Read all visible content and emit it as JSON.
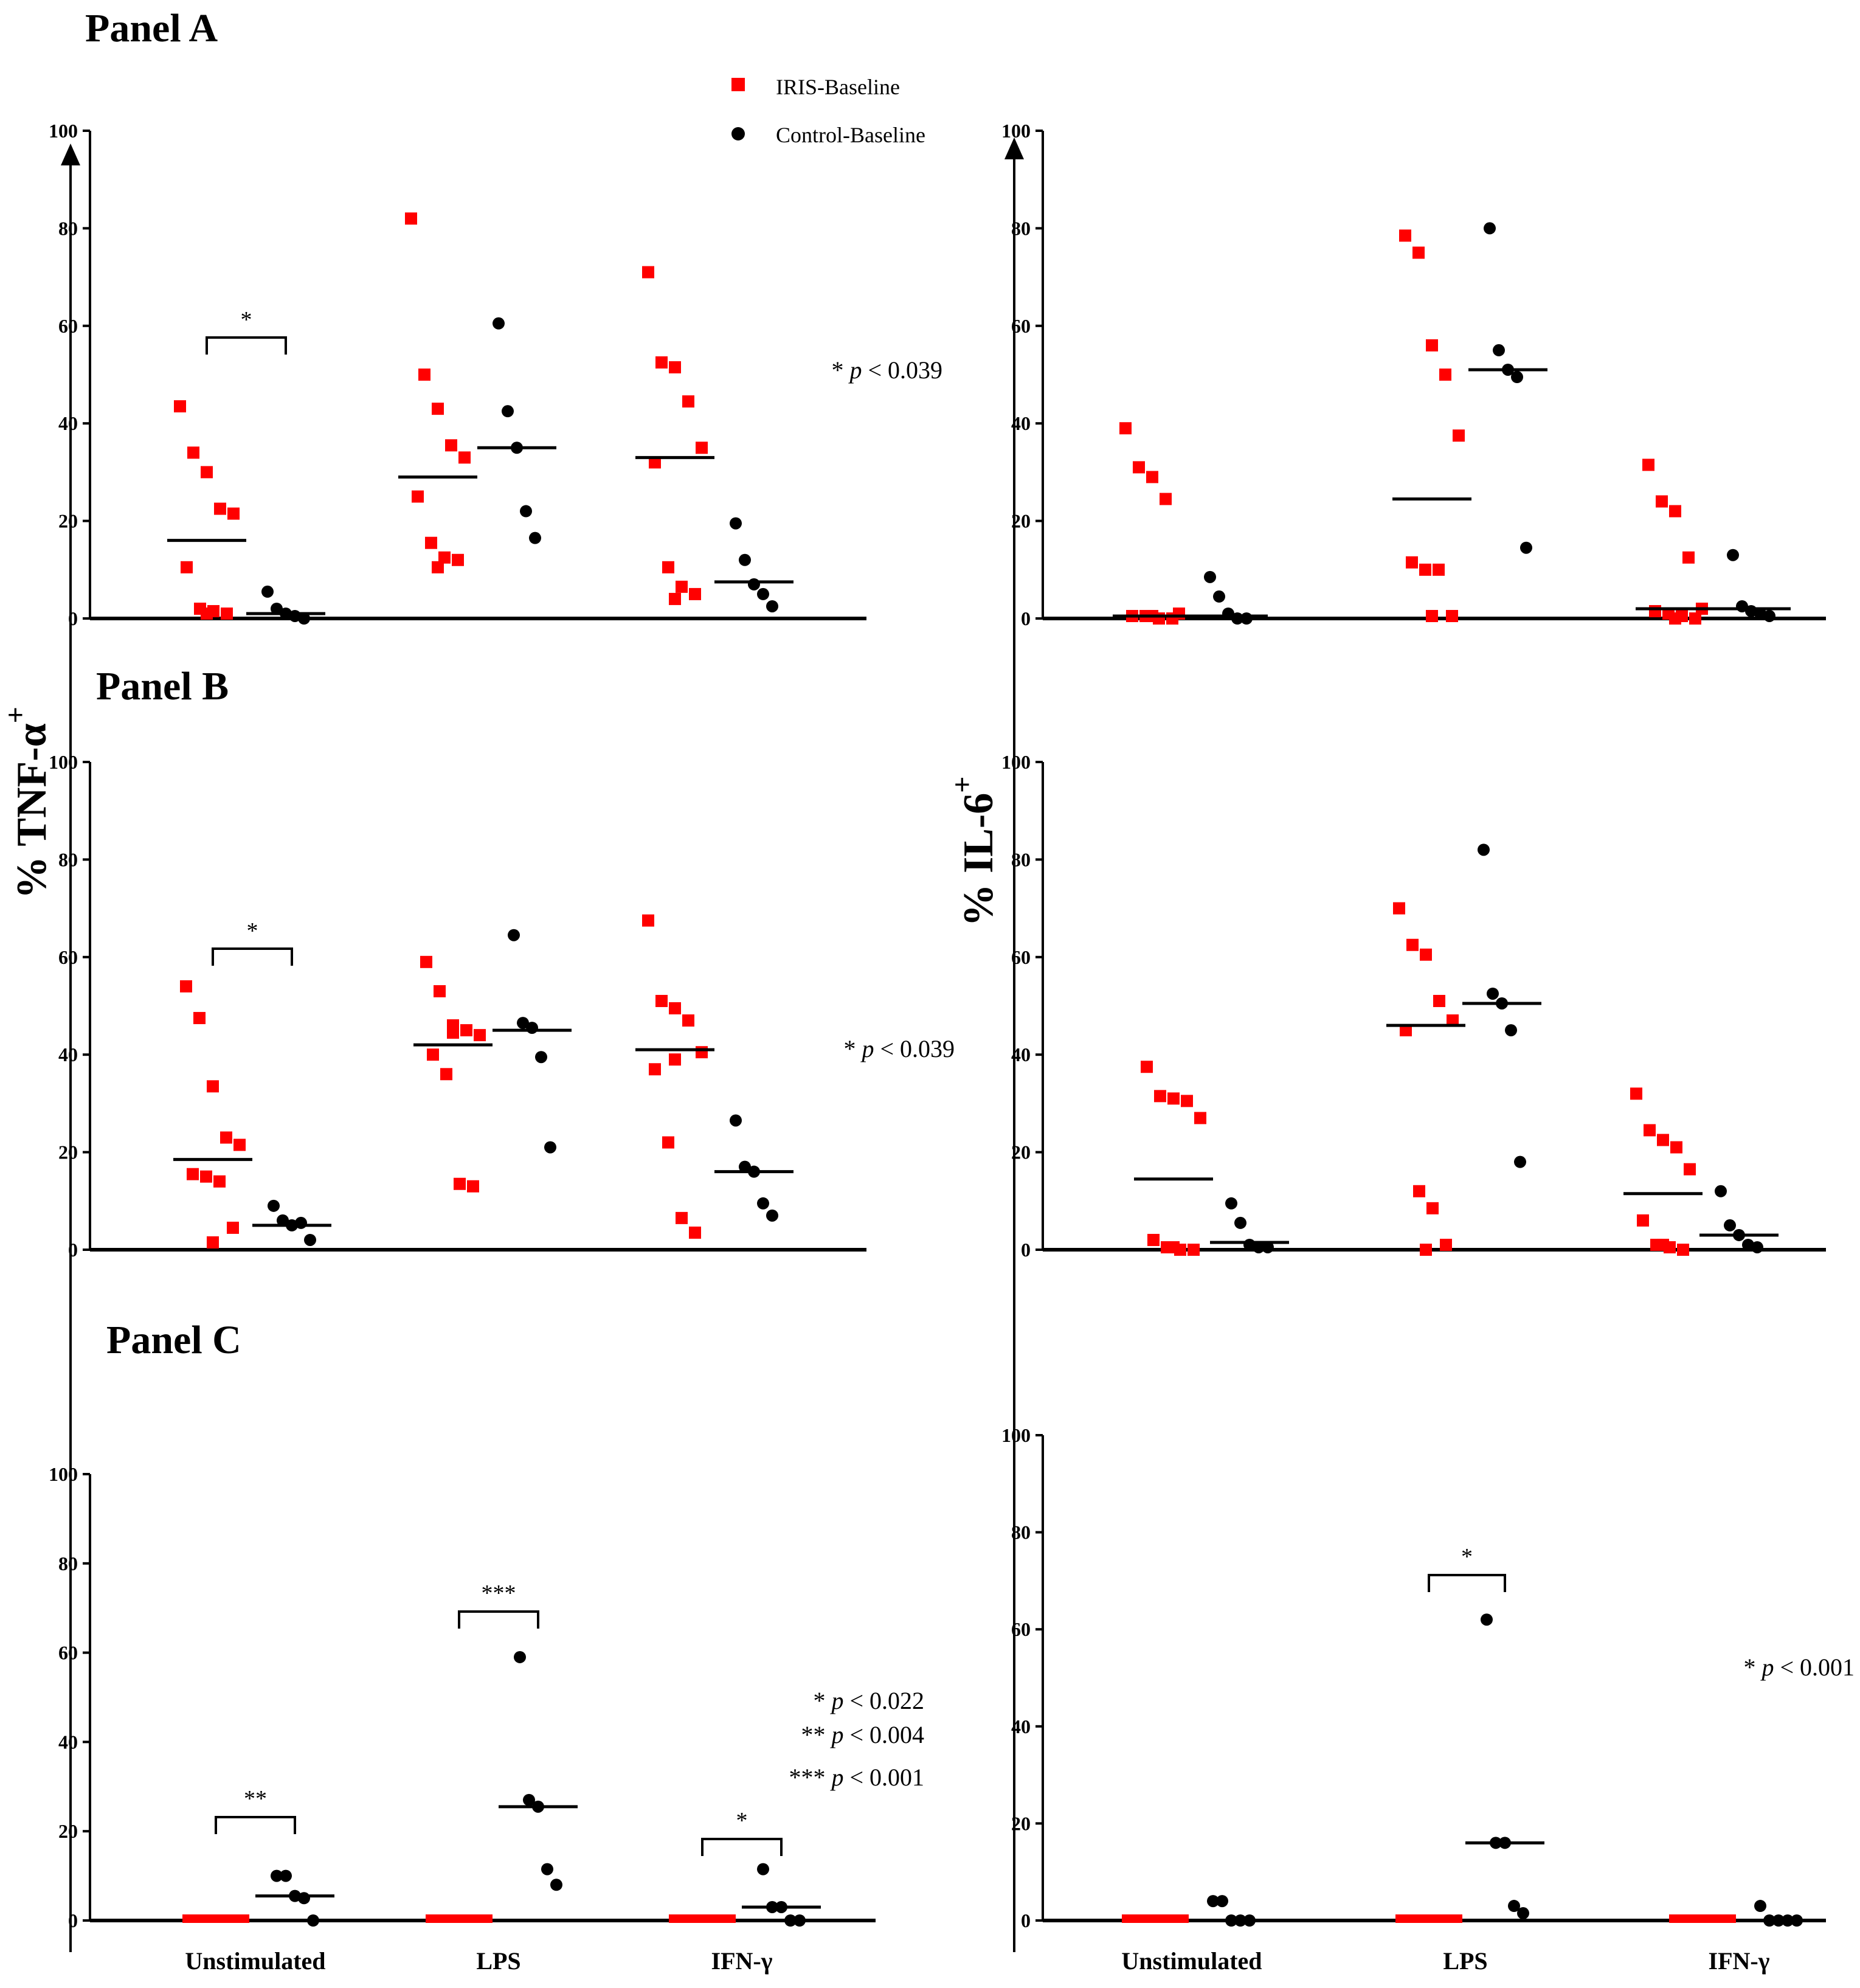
{
  "labels": {
    "panel_a": "Panel A",
    "panel_b": "Panel B",
    "panel_c": "Panel C",
    "y_tnf": "% TNF-α",
    "y_il6": "% IL-6",
    "y_sup": "+"
  },
  "colors": {
    "iris": "#ff0000",
    "control": "#000000",
    "axis": "#000000"
  },
  "legend": [
    {
      "name": "IRIS-Baseline",
      "marker": "square",
      "color": "#ff0000"
    },
    {
      "name": "Control-Baseline",
      "marker": "circle",
      "color": "#000000"
    }
  ],
  "chart_data": [
    {
      "type": "scatter",
      "id": "A-TNF",
      "panel": "Panel A",
      "ylabel": "% TNF-α+",
      "ylim": [
        0,
        100
      ],
      "yticks": [
        0,
        20,
        40,
        60,
        80,
        100
      ],
      "categories": [
        "Unstimulated",
        "LPS",
        "IFN-γ"
      ],
      "show_category_labels": false,
      "series": [
        {
          "name": "IRIS-Baseline",
          "groups": [
            [
              43.5,
              34,
              30,
              22.5,
              21.5,
              10.5,
              2,
              1.5,
              1,
              1
            ],
            [
              82,
              50,
              43,
              35.5,
              33,
              25,
              15.5,
              12.5,
              12,
              10.5
            ],
            [
              71,
              52.5,
              51.5,
              44.5,
              35,
              32,
              10.5,
              6.5,
              5,
              4
            ]
          ],
          "medians": [
            16,
            29,
            33
          ]
        },
        {
          "name": "Control-Baseline",
          "groups": [
            [
              5.5,
              2,
              1,
              0.5,
              0
            ],
            [
              60.5,
              42.5,
              35,
              22,
              16.5
            ],
            [
              19.5,
              12,
              7,
              5,
              2.5
            ]
          ],
          "medians": [
            1,
            35,
            7.5
          ]
        }
      ],
      "brackets": [
        {
          "group": 0,
          "stars": "*"
        }
      ],
      "annotations": [
        {
          "stars": "*",
          "text": "p < 0.039"
        }
      ]
    },
    {
      "type": "scatter",
      "id": "A-IL6",
      "panel": "Panel A",
      "ylabel": "% IL-6+",
      "ylim": [
        0,
        100
      ],
      "yticks": [
        0,
        20,
        40,
        60,
        80,
        100
      ],
      "categories": [
        "Unstimulated",
        "LPS",
        "IFN-γ"
      ],
      "show_category_labels": false,
      "series": [
        {
          "name": "IRIS-Baseline",
          "groups": [
            [
              39,
              31,
              29,
              24.5,
              1,
              0.5,
              0.5,
              0,
              0,
              0.5
            ],
            [
              78.5,
              75,
              56,
              50,
              37.5,
              11.5,
              10,
              10,
              0.5,
              0.5
            ],
            [
              31.5,
              24,
              22,
              12.5,
              2,
              1.5,
              1,
              0.5,
              0,
              0
            ]
          ],
          "medians": [
            0.5,
            24.5,
            2
          ]
        },
        {
          "name": "Control-Baseline",
          "groups": [
            [
              8.5,
              4.5,
              1,
              0,
              0
            ],
            [
              80,
              55,
              51,
              49.5,
              14.5
            ],
            [
              13,
              2.5,
              1.5,
              1,
              0.5
            ]
          ],
          "medians": [
            0.5,
            51,
            2
          ]
        }
      ],
      "brackets": [],
      "annotations": []
    },
    {
      "type": "scatter",
      "id": "B-TNF",
      "panel": "Panel B",
      "ylabel": "% TNF-α+",
      "ylim": [
        0,
        100
      ],
      "yticks": [
        0,
        20,
        40,
        60,
        80,
        100
      ],
      "categories": [
        "Unstimulated",
        "LPS",
        "IFN-γ"
      ],
      "show_category_labels": false,
      "series": [
        {
          "name": "IRIS-Baseline",
          "groups": [
            [
              54,
              47.5,
              33.5,
              23,
              21.5,
              15.5,
              15,
              14,
              4.5,
              1.5
            ],
            [
              59,
              53,
              46,
              45,
              44,
              40,
              36,
              13.5,
              13,
              44.5
            ],
            [
              67.5,
              51,
              49.5,
              47,
              40.5,
              37,
              22,
              6.5,
              3.5,
              39
            ]
          ],
          "medians": [
            18.5,
            42,
            41
          ]
        },
        {
          "name": "Control-Baseline",
          "groups": [
            [
              9,
              6,
              5,
              5.5,
              2
            ],
            [
              64.5,
              46.5,
              45.5,
              39.5,
              21
            ],
            [
              26.5,
              17,
              16,
              9.5,
              7
            ]
          ],
          "medians": [
            5,
            45,
            16
          ]
        }
      ],
      "brackets": [
        {
          "group": 0,
          "stars": "*"
        }
      ],
      "annotations": [
        {
          "stars": "*",
          "text": "p < 0.039"
        }
      ]
    },
    {
      "type": "scatter",
      "id": "B-IL6",
      "panel": "Panel B",
      "ylabel": "% IL-6+",
      "ylim": [
        0,
        100
      ],
      "yticks": [
        0,
        20,
        40,
        60,
        80,
        100
      ],
      "categories": [
        "Unstimulated",
        "LPS",
        "IFN-γ"
      ],
      "show_category_labels": false,
      "series": [
        {
          "name": "IRIS-Baseline",
          "groups": [
            [
              37.5,
              31.5,
              31,
              30.5,
              27,
              2,
              0.5,
              0,
              0,
              0.5
            ],
            [
              70,
              62.5,
              60.5,
              51,
              47,
              45,
              12,
              8.5,
              1,
              0
            ],
            [
              32,
              24.5,
              22.5,
              21,
              16.5,
              6,
              1,
              0.5,
              0,
              1
            ]
          ],
          "medians": [
            14.5,
            46,
            11.5
          ]
        },
        {
          "name": "Control-Baseline",
          "groups": [
            [
              9.5,
              5.5,
              1,
              0.5,
              0.5
            ],
            [
              82,
              52.5,
              50.5,
              45,
              18
            ],
            [
              12,
              5,
              3,
              1,
              0.5
            ]
          ],
          "medians": [
            1.5,
            50.5,
            3
          ]
        }
      ],
      "brackets": [],
      "annotations": []
    },
    {
      "type": "scatter",
      "id": "C-TNF",
      "panel": "Panel C",
      "ylabel": "% TNF-α+",
      "ylim": [
        0,
        100
      ],
      "yticks": [
        0,
        20,
        40,
        60,
        80,
        100
      ],
      "categories": [
        "Unstimulated",
        "LPS",
        "IFN-γ"
      ],
      "show_category_labels": true,
      "series": [
        {
          "name": "IRIS-Baseline",
          "groups": [
            [],
            [],
            []
          ],
          "medians": [
            0,
            0,
            0
          ],
          "baseline_bar": true
        },
        {
          "name": "Control-Baseline",
          "groups": [
            [
              10,
              10,
              5.5,
              5,
              0
            ],
            [
              59,
              27,
              25.5,
              11.5,
              8
            ],
            [
              11.5,
              3,
              3,
              0,
              0
            ]
          ],
          "medians": [
            5.5,
            25.5,
            3
          ]
        }
      ],
      "brackets": [
        {
          "group": 0,
          "stars": "**"
        },
        {
          "group": 1,
          "stars": "***"
        },
        {
          "group": 2,
          "stars": "*"
        }
      ],
      "annotations": [
        {
          "stars": "*",
          "text": "p < 0.022"
        },
        {
          "stars": "**",
          "text": "p < 0.004"
        },
        {
          "stars": "***",
          "text": "p < 0.001"
        }
      ]
    },
    {
      "type": "scatter",
      "id": "C-IL6",
      "panel": "Panel C",
      "ylabel": "% IL-6+",
      "ylim": [
        0,
        100
      ],
      "yticks": [
        0,
        20,
        40,
        60,
        80,
        100
      ],
      "categories": [
        "Unstimulated",
        "LPS",
        "IFN-γ"
      ],
      "show_category_labels": true,
      "series": [
        {
          "name": "IRIS-Baseline",
          "groups": [
            [],
            [],
            []
          ],
          "medians": [
            0,
            0,
            0
          ],
          "baseline_bar": true
        },
        {
          "name": "Control-Baseline",
          "groups": [
            [
              4,
              4,
              0,
              0,
              0
            ],
            [
              62,
              16,
              16,
              3,
              1.5
            ],
            [
              3,
              0,
              0,
              0,
              0
            ]
          ],
          "medians": [
            0,
            16,
            0
          ]
        }
      ],
      "brackets": [
        {
          "group": 1,
          "stars": "*"
        }
      ],
      "annotations": [
        {
          "stars": "*",
          "text": "p < 0.001"
        }
      ]
    }
  ]
}
